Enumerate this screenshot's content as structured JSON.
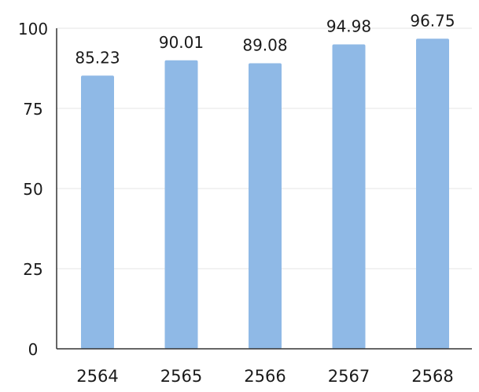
{
  "chart_data": {
    "type": "bar",
    "categories": [
      "2564",
      "2565",
      "2566",
      "2567",
      "2568"
    ],
    "values": [
      85.23,
      90.01,
      89.08,
      94.98,
      96.75
    ],
    "value_labels": [
      "85.23",
      "90.01",
      "89.08",
      "94.98",
      "96.75"
    ],
    "ylim": [
      0,
      100
    ],
    "y_ticks": [
      "0",
      "25",
      "50",
      "75",
      "100"
    ],
    "grid": true,
    "bar_color": "#8fb9e6",
    "axis_color": "#333333",
    "grid_color": "#e6e6e6"
  }
}
